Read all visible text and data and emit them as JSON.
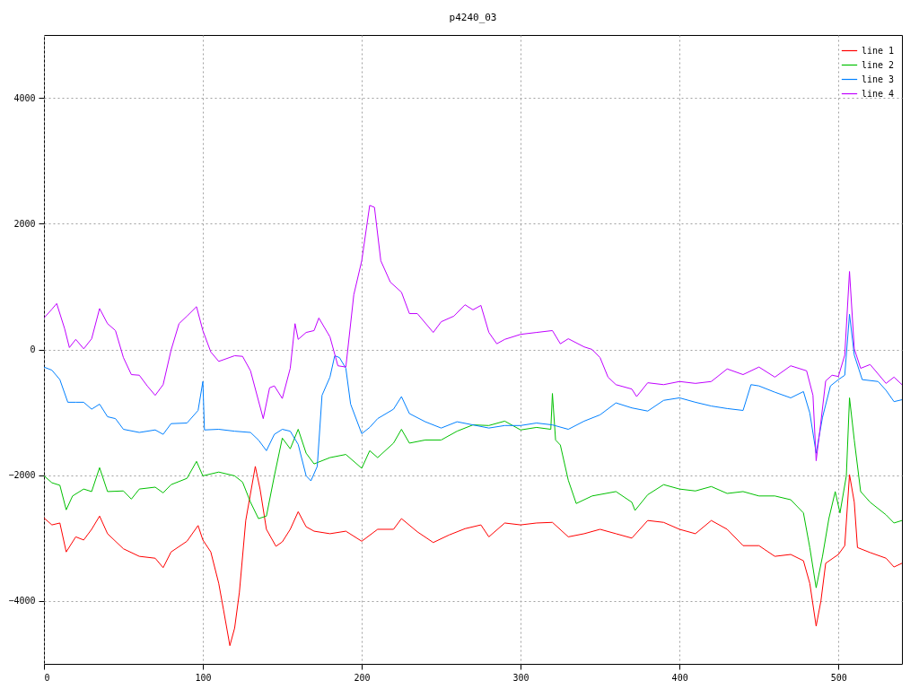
{
  "chart_data": {
    "type": "line",
    "title": "p4240_03",
    "xlim": [
      0,
      540
    ],
    "ylim": [
      -5000,
      5000
    ],
    "xticks": [
      0,
      100,
      200,
      300,
      400,
      500
    ],
    "yticks": [
      -4000,
      -2000,
      0,
      2000,
      4000
    ],
    "grid": true,
    "legend": "top right",
    "line_style": "solid",
    "marker": "none",
    "series": [
      {
        "name": "line 1",
        "color": "#ff0000",
        "x": [
          0,
          5,
          10,
          14,
          20,
          25,
          30,
          35,
          40,
          50,
          60,
          70,
          75,
          80,
          90,
          97,
          100,
          105,
          110,
          113,
          117,
          120,
          123,
          127,
          133,
          136,
          140,
          146,
          150,
          155,
          160,
          165,
          170,
          180,
          190,
          200,
          210,
          220,
          225,
          235,
          245,
          255,
          265,
          275,
          280,
          290,
          300,
          310,
          320,
          330,
          340,
          350,
          360,
          370,
          380,
          390,
          400,
          410,
          420,
          430,
          440,
          450,
          460,
          470,
          478,
          482,
          486,
          489,
          492,
          500,
          504,
          507,
          510,
          512,
          520,
          530,
          535,
          540
        ],
        "values": [
          -2680,
          -2790,
          -2760,
          -3220,
          -2980,
          -3030,
          -2860,
          -2650,
          -2930,
          -3170,
          -3290,
          -3320,
          -3470,
          -3220,
          -3050,
          -2800,
          -3030,
          -3220,
          -3720,
          -4140,
          -4710,
          -4430,
          -3860,
          -2720,
          -1860,
          -2220,
          -2860,
          -3130,
          -3060,
          -2860,
          -2580,
          -2820,
          -2890,
          -2930,
          -2890,
          -3050,
          -2860,
          -2860,
          -2690,
          -2900,
          -3070,
          -2950,
          -2850,
          -2790,
          -2980,
          -2760,
          -2790,
          -2760,
          -2750,
          -2980,
          -2930,
          -2860,
          -2930,
          -3000,
          -2720,
          -2750,
          -2860,
          -2930,
          -2720,
          -2860,
          -3120,
          -3120,
          -3290,
          -3260,
          -3360,
          -3720,
          -4400,
          -4000,
          -3400,
          -3260,
          -3120,
          -1990,
          -2430,
          -3150,
          -3230,
          -3320,
          -3460,
          -3400
        ]
      },
      {
        "name": "line 2",
        "color": "#00c000",
        "x": [
          0,
          5,
          10,
          14,
          18,
          25,
          30,
          35,
          40,
          50,
          55,
          60,
          70,
          75,
          80,
          90,
          96,
          100,
          110,
          120,
          125,
          130,
          135,
          140,
          145,
          150,
          155,
          160,
          165,
          170,
          180,
          190,
          200,
          205,
          210,
          220,
          225,
          230,
          240,
          250,
          260,
          270,
          280,
          290,
          300,
          310,
          319,
          320,
          322,
          325,
          330,
          335,
          345,
          360,
          370,
          372,
          380,
          390,
          400,
          410,
          420,
          430,
          440,
          450,
          460,
          470,
          478,
          482,
          486,
          490,
          494,
          498,
          501,
          505,
          507,
          510,
          514,
          520,
          530,
          535,
          540
        ],
        "values": [
          -2010,
          -2120,
          -2160,
          -2550,
          -2330,
          -2220,
          -2260,
          -1880,
          -2260,
          -2250,
          -2380,
          -2220,
          -2190,
          -2280,
          -2150,
          -2050,
          -1780,
          -2010,
          -1950,
          -2010,
          -2110,
          -2430,
          -2690,
          -2650,
          -2010,
          -1410,
          -1580,
          -1270,
          -1650,
          -1820,
          -1720,
          -1670,
          -1890,
          -1610,
          -1720,
          -1490,
          -1270,
          -1490,
          -1440,
          -1440,
          -1300,
          -1200,
          -1210,
          -1140,
          -1280,
          -1240,
          -1270,
          -700,
          -1440,
          -1520,
          -2080,
          -2450,
          -2330,
          -2260,
          -2430,
          -2560,
          -2310,
          -2150,
          -2220,
          -2250,
          -2180,
          -2290,
          -2260,
          -2330,
          -2330,
          -2390,
          -2600,
          -3150,
          -3790,
          -3290,
          -2690,
          -2260,
          -2600,
          -2010,
          -770,
          -1440,
          -2260,
          -2430,
          -2630,
          -2760,
          -2720
        ]
      },
      {
        "name": "line 3",
        "color": "#0080ff",
        "x": [
          0,
          5,
          10,
          15,
          20,
          25,
          30,
          35,
          40,
          45,
          50,
          60,
          70,
          75,
          80,
          90,
          97,
          100,
          101,
          110,
          120,
          130,
          135,
          140,
          145,
          150,
          155,
          160,
          165,
          168,
          172,
          175,
          180,
          183,
          186,
          190,
          193,
          200,
          205,
          210,
          220,
          225,
          230,
          240,
          250,
          260,
          270,
          280,
          290,
          300,
          310,
          320,
          330,
          340,
          350,
          360,
          370,
          380,
          390,
          400,
          410,
          420,
          430,
          440,
          445,
          450,
          460,
          470,
          478,
          482,
          486,
          490,
          495,
          500,
          504,
          507,
          510,
          515,
          525,
          530,
          535,
          540
        ],
        "values": [
          -280,
          -330,
          -480,
          -840,
          -840,
          -840,
          -950,
          -870,
          -1070,
          -1100,
          -1270,
          -1320,
          -1280,
          -1350,
          -1180,
          -1170,
          -970,
          -510,
          -1280,
          -1270,
          -1300,
          -1320,
          -1440,
          -1610,
          -1350,
          -1270,
          -1300,
          -1510,
          -2010,
          -2090,
          -1860,
          -730,
          -440,
          -100,
          -130,
          -300,
          -870,
          -1340,
          -1240,
          -1100,
          -950,
          -750,
          -1020,
          -1150,
          -1250,
          -1150,
          -1200,
          -1250,
          -1210,
          -1210,
          -1170,
          -1200,
          -1270,
          -1140,
          -1040,
          -850,
          -930,
          -980,
          -810,
          -770,
          -840,
          -900,
          -940,
          -970,
          -560,
          -580,
          -680,
          -770,
          -670,
          -1010,
          -1650,
          -1080,
          -580,
          -480,
          -410,
          560,
          -90,
          -480,
          -510,
          -650,
          -830,
          -800
        ]
      },
      {
        "name": "line 4",
        "color": "#c000ff",
        "x": [
          0,
          5,
          8,
          13,
          16,
          20,
          25,
          30,
          35,
          40,
          45,
          50,
          55,
          60,
          65,
          70,
          75,
          80,
          85,
          90,
          96,
          100,
          105,
          110,
          120,
          125,
          130,
          138,
          142,
          145,
          150,
          155,
          158,
          160,
          165,
          170,
          173,
          180,
          185,
          190,
          195,
          200,
          205,
          208,
          212,
          218,
          225,
          230,
          235,
          245,
          250,
          258,
          265,
          270,
          275,
          280,
          285,
          290,
          300,
          310,
          320,
          325,
          330,
          340,
          345,
          350,
          355,
          360,
          370,
          373,
          380,
          390,
          400,
          410,
          420,
          430,
          440,
          450,
          460,
          470,
          480,
          484,
          486,
          489,
          492,
          496,
          500,
          504,
          507,
          510,
          514,
          520,
          530,
          535,
          540
        ],
        "values": [
          500,
          640,
          730,
          330,
          30,
          160,
          10,
          170,
          650,
          410,
          300,
          -130,
          -400,
          -410,
          -580,
          -730,
          -560,
          -10,
          410,
          530,
          680,
          300,
          -40,
          -190,
          -100,
          -110,
          -340,
          -1100,
          -610,
          -580,
          -780,
          -300,
          410,
          160,
          270,
          300,
          500,
          200,
          -260,
          -280,
          870,
          1410,
          2290,
          2260,
          1410,
          1070,
          910,
          570,
          570,
          270,
          440,
          530,
          710,
          630,
          700,
          270,
          90,
          160,
          240,
          270,
          300,
          90,
          170,
          40,
          0,
          -130,
          -440,
          -560,
          -630,
          -750,
          -530,
          -560,
          -510,
          -540,
          -510,
          -310,
          -400,
          -280,
          -440,
          -260,
          -340,
          -730,
          -1770,
          -1150,
          -500,
          -410,
          -430,
          -90,
          1240,
          10,
          -300,
          -240,
          -540,
          -440,
          -560
        ]
      }
    ]
  }
}
